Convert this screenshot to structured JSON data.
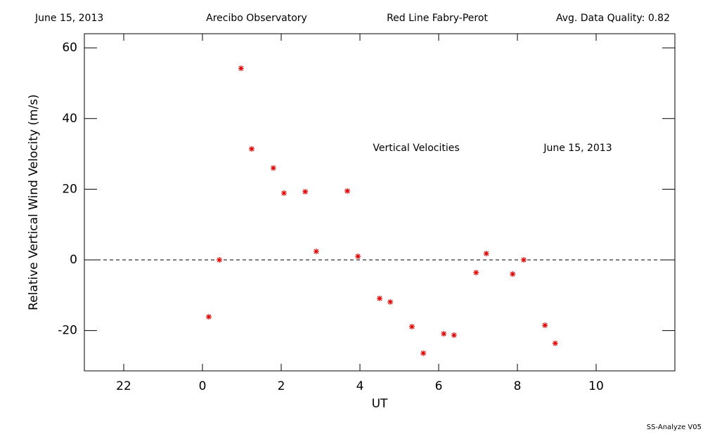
{
  "chart_data": {
    "type": "scatter",
    "header": [
      "June 15, 2013",
      "Arecibo Observatory",
      "Red Line Fabry-Perot",
      "Avg. Data Quality: 0.82"
    ],
    "annotations": [
      "Vertical Velocities",
      "June 15, 2013"
    ],
    "footer": "SS-Analyze V05",
    "x_label": "UT",
    "y_label": "Relative Vertical Wind Velocity (m/s)",
    "x": [
      0.16,
      0.43,
      0.98,
      1.25,
      1.8,
      2.07,
      2.61,
      2.89,
      3.68,
      3.95,
      4.5,
      4.77,
      5.32,
      5.61,
      6.13,
      6.39,
      6.95,
      7.21,
      7.88,
      8.16,
      8.7,
      8.96
    ],
    "values": [
      -16.1,
      0,
      54.2,
      31.4,
      26.0,
      18.9,
      19.3,
      2.4,
      19.5,
      1.0,
      -10.9,
      -11.9,
      -18.9,
      -26.4,
      -20.9,
      -21.3,
      -3.6,
      1.8,
      -4.0,
      0.0,
      -18.5,
      -23.6
    ],
    "color": "#e00000",
    "xlim": [
      -3,
      12
    ],
    "xticks": [
      {
        "value": -2,
        "label": "22"
      },
      0,
      2,
      4,
      6,
      8,
      10
    ],
    "ylim": [
      -31.4,
      64
    ],
    "yticks": [
      -20,
      0,
      20,
      40,
      60
    ],
    "hline": 0
  }
}
